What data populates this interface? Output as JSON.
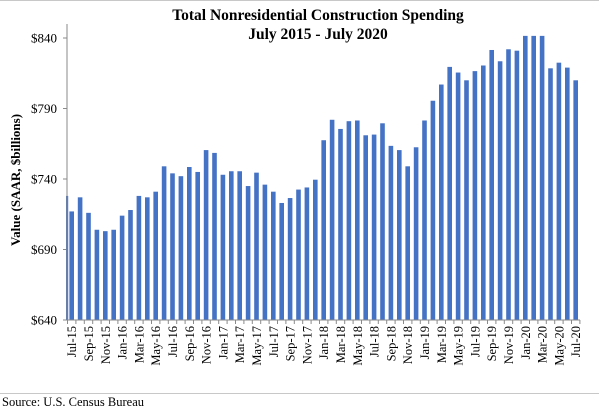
{
  "chart_data": {
    "type": "bar",
    "title": "Total Nonresidential Construction Spending",
    "subtitle": "July 2015 - July 2020",
    "xlabel": "",
    "ylabel": "Value (SAAR, $billions)",
    "ylim": [
      640,
      840
    ],
    "yticks": [
      640,
      690,
      740,
      790,
      840
    ],
    "ytick_labels": [
      "$640",
      "$690",
      "$740",
      "$790",
      "$840"
    ],
    "grid": false,
    "legend": "none",
    "bar_color": "#4472C4",
    "categories": [
      "Jul-15",
      "Aug-15",
      "Sep-15",
      "Oct-15",
      "Nov-15",
      "Dec-15",
      "Jan-16",
      "Feb-16",
      "Mar-16",
      "Apr-16",
      "May-16",
      "Jun-16",
      "Jul-16",
      "Aug-16",
      "Sep-16",
      "Oct-16",
      "Nov-16",
      "Dec-16",
      "Jan-17",
      "Feb-17",
      "Mar-17",
      "Apr-17",
      "May-17",
      "Jun-17",
      "Jul-17",
      "Aug-17",
      "Sep-17",
      "Oct-17",
      "Nov-17",
      "Dec-17",
      "Jan-18",
      "Feb-18",
      "Mar-18",
      "Apr-18",
      "May-18",
      "Jun-18",
      "Jul-18",
      "Aug-18",
      "Sep-18",
      "Oct-18",
      "Nov-18",
      "Dec-18",
      "Jan-19",
      "Feb-19",
      "Mar-19",
      "Apr-19",
      "May-19",
      "Jun-19",
      "Jul-19",
      "Aug-19",
      "Sep-19",
      "Oct-19",
      "Nov-19",
      "Dec-19",
      "Jan-20",
      "Feb-20",
      "Mar-20",
      "Apr-20",
      "May-20",
      "Jun-20",
      "Jul-20"
    ],
    "xtick_labels": [
      "Jul-15",
      "Sep-15",
      "Nov-15",
      "Jan-16",
      "Mar-16",
      "May-16",
      "Jul-16",
      "Sep-16",
      "Nov-16",
      "Jan-17",
      "Mar-17",
      "May-17",
      "Jul-17",
      "Sep-17",
      "Nov-17",
      "Jan-18",
      "Mar-18",
      "May-18",
      "Jul-18",
      "Sep-18",
      "Nov-18",
      "Jan-19",
      "Mar-19",
      "May-19",
      "Jul-19",
      "Sep-19",
      "Nov-19",
      "Jan-20",
      "Mar-20",
      "May-20",
      "Jul-20"
    ],
    "values": [
      717,
      727,
      716,
      704,
      703,
      704,
      714,
      718,
      728,
      727,
      731,
      749,
      744,
      742,
      748.5,
      745,
      760.5,
      758.5,
      743,
      745.5,
      745.5,
      735,
      744.5,
      736,
      731,
      723,
      726.5,
      732.5,
      734,
      739.5,
      767.5,
      782,
      775.5,
      781,
      781.5,
      771,
      771.5,
      779.5,
      763.5,
      760.5,
      749,
      762.5,
      781.5,
      795.5,
      807,
      819.5,
      815.5,
      810,
      816.5,
      820.5,
      831.5,
      823.5,
      832,
      831,
      841.5,
      841.5,
      841.5,
      818.5,
      822.5,
      819,
      810
    ],
    "clipped_leading_bar_value": 728
  },
  "footer": {
    "source": "Source:  U.S. Census Bureau"
  }
}
